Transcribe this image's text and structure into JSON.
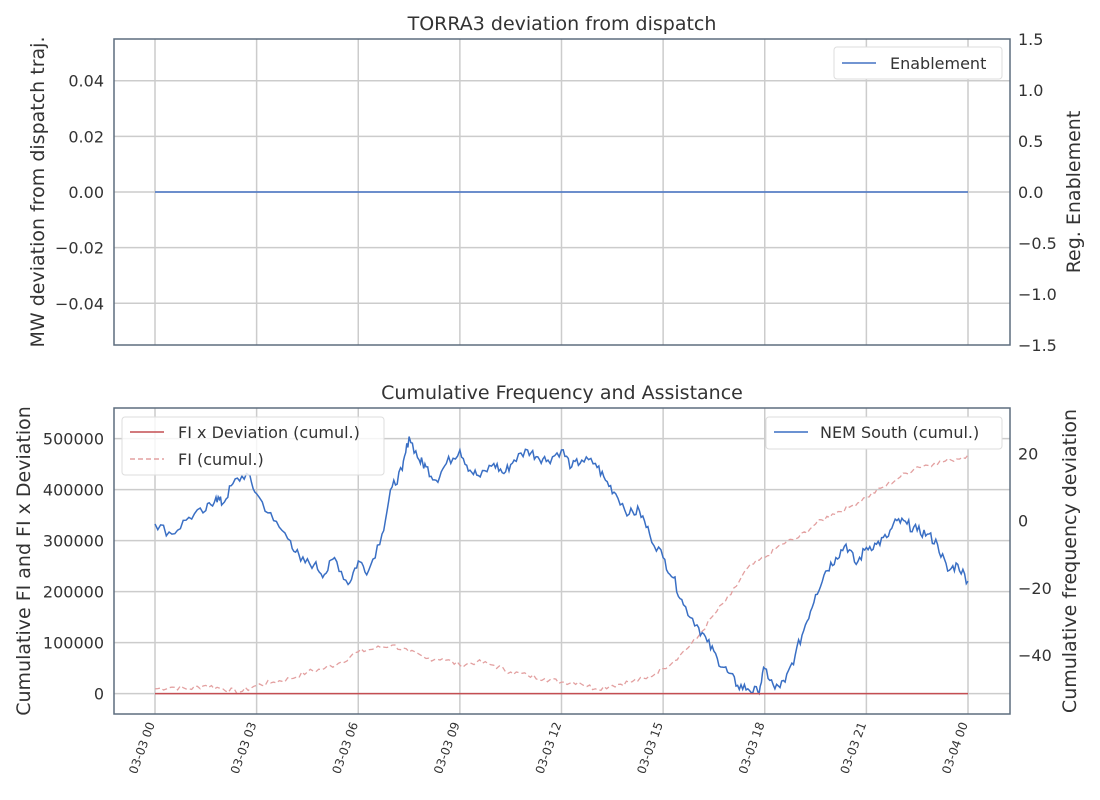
{
  "chart_data": [
    {
      "type": "line",
      "title": "TORRA3 deviation from dispatch",
      "ylabel": "MW deviation from dispatch traj.",
      "y2label": "Reg. Enablement",
      "ylim": [
        -0.055,
        0.055
      ],
      "y2lim": [
        -1.5,
        1.5
      ],
      "yticks": [
        "−0.04",
        "−0.02",
        "0.00",
        "0.02",
        "0.04"
      ],
      "y2ticks": [
        "−1.5",
        "−1.0",
        "−0.5",
        "0.0",
        "0.5",
        "1.0",
        "1.5"
      ],
      "legend": "top-right",
      "grid": true,
      "colors": {
        "enablement": "#4472c4"
      },
      "series": [
        {
          "name": "Enablement",
          "axis": "right",
          "x_hours": [
            0,
            24
          ],
          "values": [
            0.0,
            0.0
          ]
        }
      ]
    },
    {
      "type": "line",
      "title": "Cumulative Frequency and Assistance",
      "ylabel": "Cumulative FI and FI x Deviation",
      "y2label": "Cumulative frequency deviation",
      "ylim": [
        -40000,
        560000
      ],
      "y2lim": [
        -57.5,
        33.5
      ],
      "yticks": [
        "0",
        "100000",
        "200000",
        "300000",
        "400000",
        "500000"
      ],
      "y2ticks": [
        "−40",
        "−20",
        "0",
        "20"
      ],
      "xticks": [
        "03-03 00",
        "03-03 03",
        "03-03 06",
        "03-03 09",
        "03-03 12",
        "03-03 15",
        "03-03 18",
        "03-03 21",
        "03-04 00"
      ],
      "legend": "top-left and top-right",
      "grid": true,
      "colors": {
        "fi_x_dev": "#c44e52",
        "fi": "#e3a0a0",
        "nem_south": "#3a6fc4"
      },
      "series": [
        {
          "name": "FI x Deviation (cumul.)",
          "axis": "left",
          "x_hours": [
            0,
            24
          ],
          "values": [
            0,
            0
          ]
        },
        {
          "name": "FI (cumul.)",
          "axis": "right",
          "x_hours": [
            0,
            0.5,
            1,
            1.5,
            2,
            2.5,
            3,
            3.5,
            4,
            4.5,
            5,
            5.5,
            6,
            6.5,
            7,
            7.5,
            8,
            8.5,
            9,
            9.5,
            10,
            10.5,
            11,
            11.5,
            12,
            12.5,
            13,
            13.5,
            14,
            14.5,
            15,
            15.5,
            16,
            16.5,
            17,
            17.5,
            18,
            18.5,
            19,
            19.5,
            20,
            20.5,
            21,
            21.5,
            22,
            22.5,
            23,
            23.5,
            24
          ],
          "values": [
            -50,
            -49.5,
            -50,
            -49,
            -50,
            -51,
            -49,
            -48,
            -47,
            -45,
            -44,
            -42,
            -39,
            -38,
            -37,
            -39,
            -41,
            -41,
            -43,
            -42,
            -43,
            -45,
            -46,
            -47,
            -48,
            -48,
            -50,
            -49,
            -48,
            -47,
            -44,
            -40,
            -35,
            -28,
            -22,
            -14,
            -11,
            -7,
            -5,
            -1,
            2,
            4,
            7,
            10,
            13,
            16,
            17,
            18,
            19.5
          ]
        },
        {
          "name": "NEM South (cumul.)",
          "axis": "right",
          "x_hours": [
            0,
            0.5,
            1,
            1.5,
            1.8,
            2,
            2.3,
            2.7,
            3,
            3.5,
            4,
            4.3,
            4.7,
            5,
            5.3,
            5.7,
            6,
            6.3,
            6.7,
            7,
            7.3,
            7.5,
            7.8,
            8,
            8.3,
            8.6,
            9,
            9.3,
            9.6,
            10,
            10.3,
            10.6,
            11,
            11.3,
            11.6,
            12,
            12.3,
            12.6,
            13,
            13.3,
            13.6,
            14,
            14.3,
            14.6,
            15,
            15.3,
            15.6,
            16,
            16.3,
            16.6,
            16.9,
            17.2,
            17.5,
            17.8,
            18,
            18.3,
            18.6,
            18.9,
            19.2,
            19.5,
            19.8,
            20.1,
            20.4,
            20.7,
            21,
            21.3,
            21.6,
            21.9,
            22.2,
            22.5,
            22.8,
            23.1,
            23.4,
            23.7,
            24
          ],
          "values": [
            -1,
            -4,
            1,
            3,
            7,
            5,
            11,
            14,
            8,
            0,
            -6,
            -12,
            -13,
            -16,
            -11,
            -19,
            -12,
            -15,
            -4,
            10,
            15,
            25,
            18,
            16,
            12,
            17,
            21,
            15,
            13,
            17,
            14,
            18,
            21,
            19,
            18,
            21,
            16,
            18,
            17,
            12,
            8,
            2,
            3,
            -4,
            -11,
            -17,
            -25,
            -31,
            -36,
            -41,
            -45,
            -49,
            -50,
            -51,
            -44,
            -50,
            -48,
            -40,
            -31,
            -22,
            -15,
            -11,
            -7,
            -13,
            -8,
            -7,
            -5,
            0,
            -1,
            -3,
            -4,
            -7,
            -15,
            -13,
            -18
          ]
        }
      ]
    }
  ]
}
